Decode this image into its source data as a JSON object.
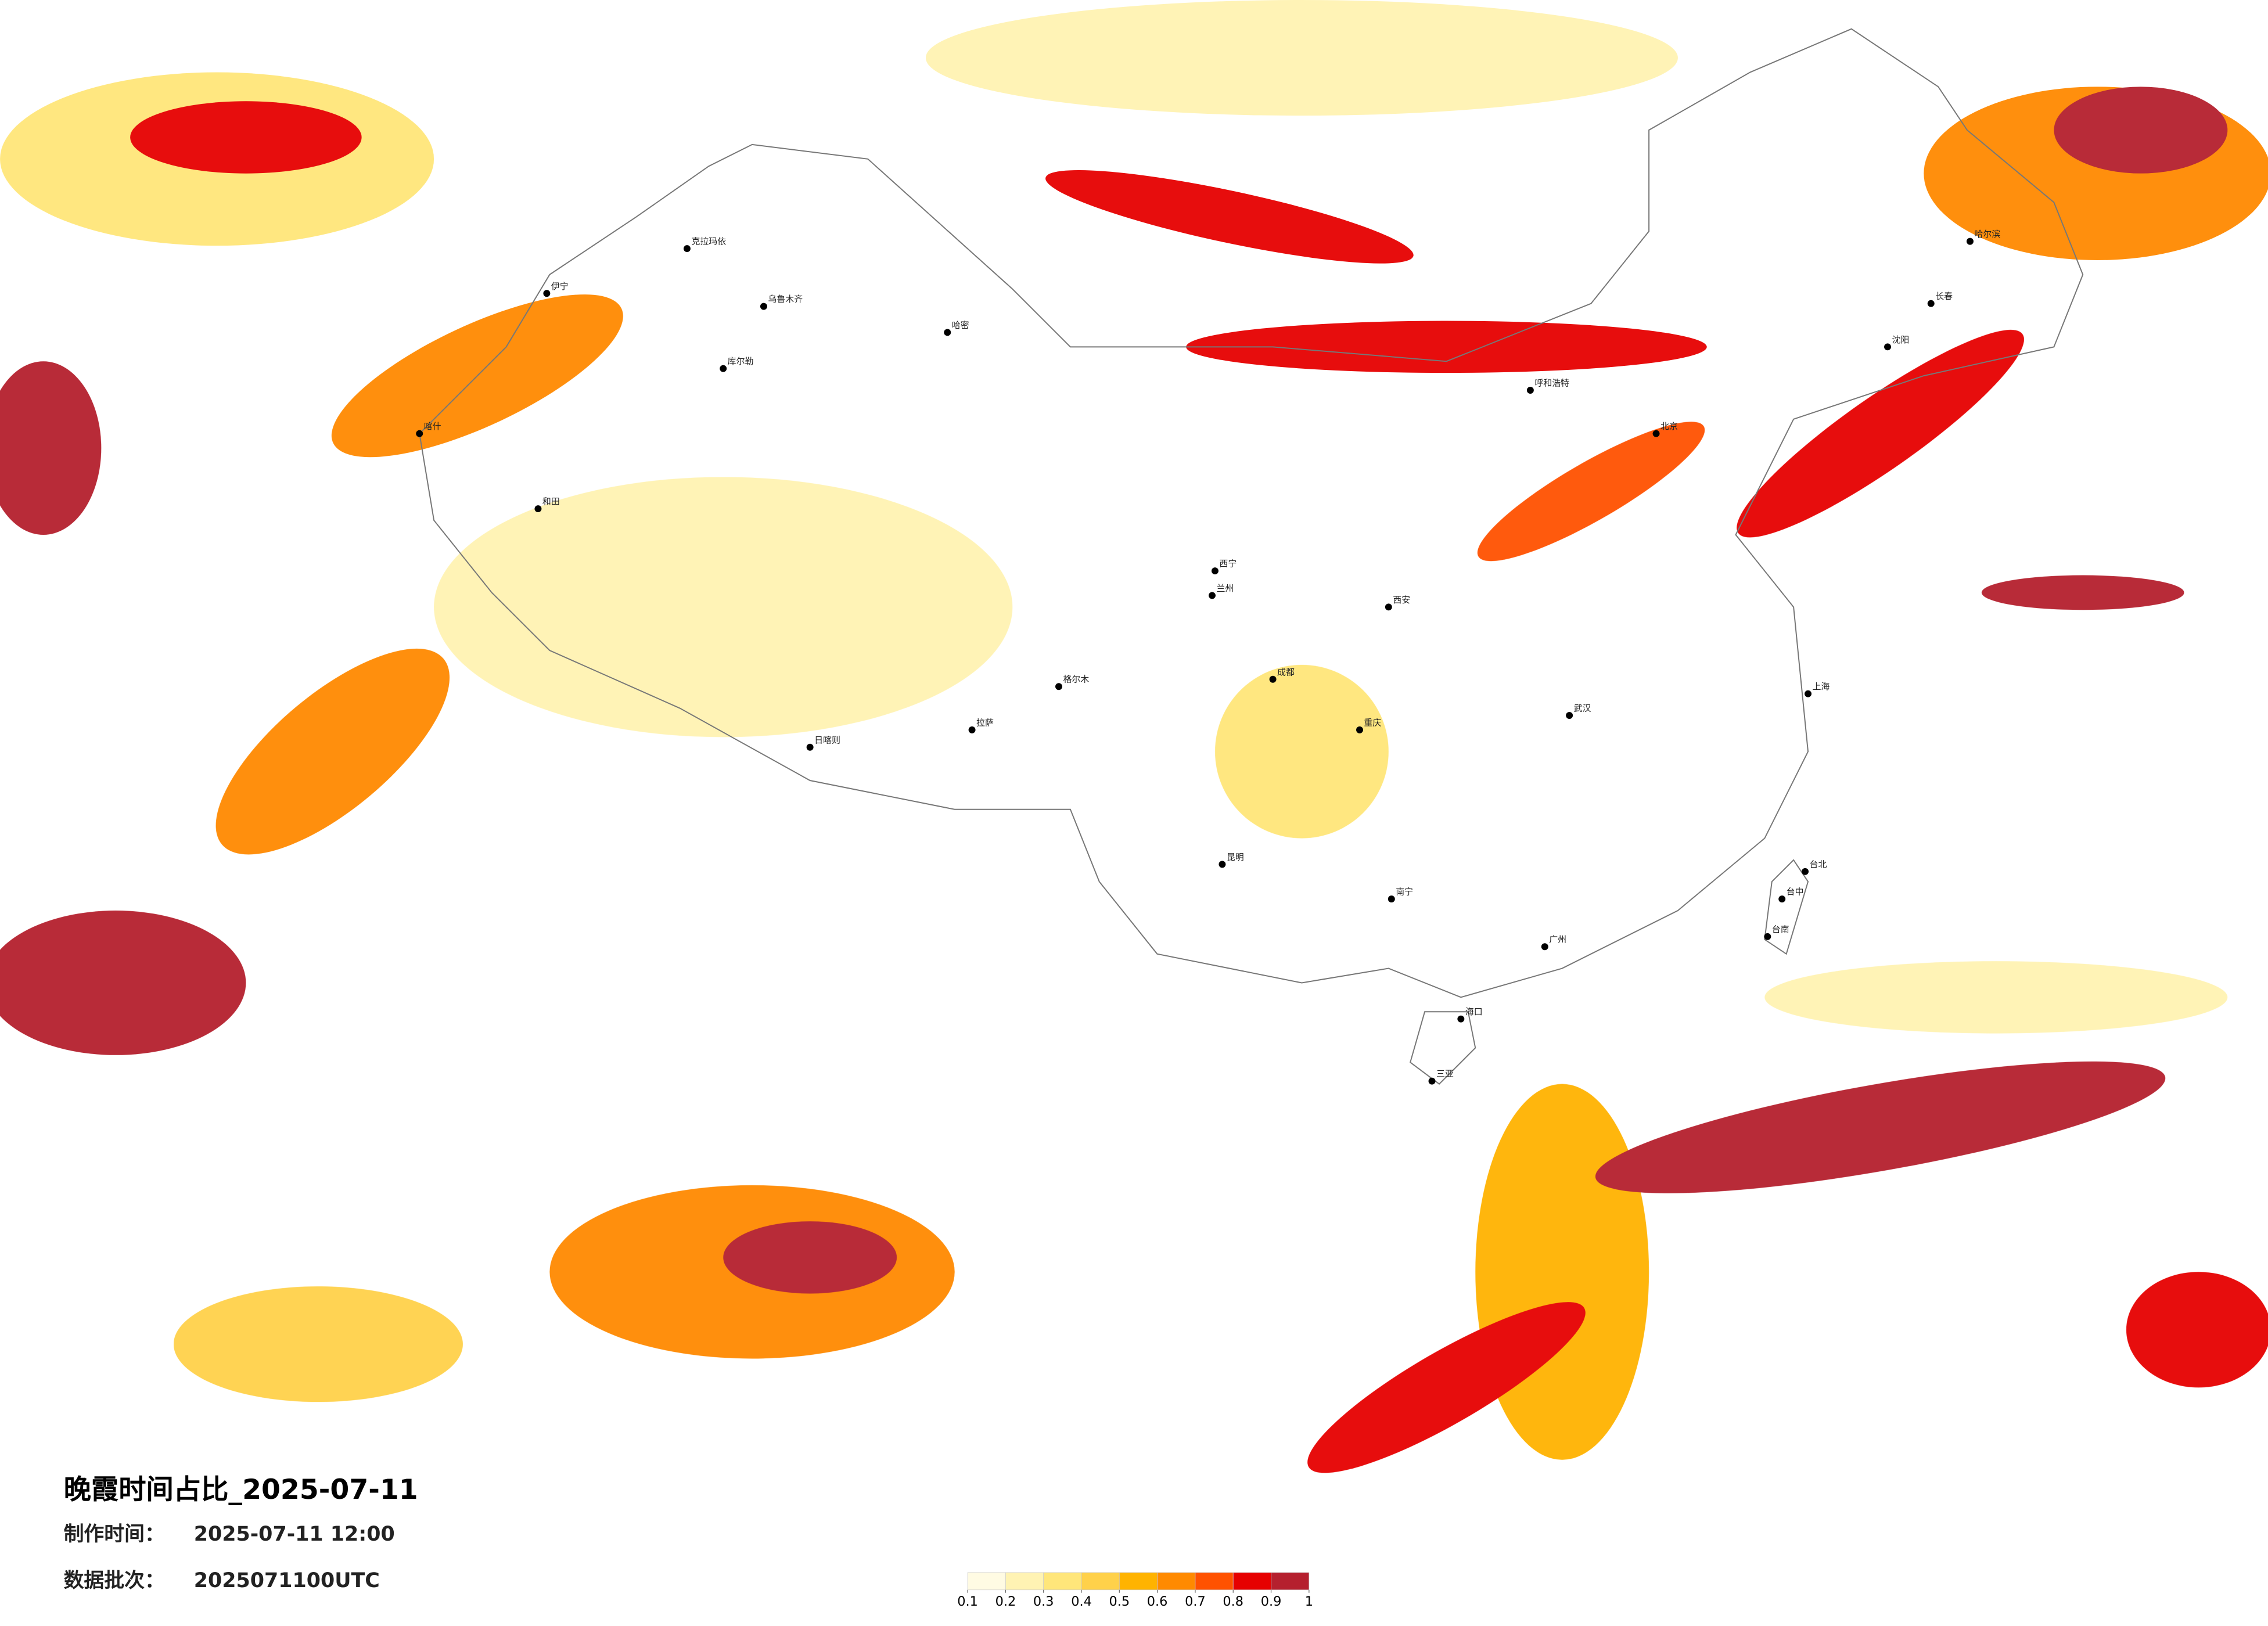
{
  "title": "晚霞时间占比_2025-07-11",
  "info": [
    {
      "label": "制作时间：",
      "value": "2025-07-11 12:00"
    },
    {
      "label": "数据批次：",
      "value": "2025071100UTC"
    }
  ],
  "legend": {
    "ticks": [
      0.1,
      0.2,
      0.3,
      0.4,
      0.5,
      0.6,
      0.7,
      0.8,
      0.9,
      1
    ],
    "colors": [
      "#fffbe3",
      "#fff3b3",
      "#ffe67a",
      "#ffd14a",
      "#ffb300",
      "#ff8a00",
      "#ff5200",
      "#e60000",
      "#b5202e"
    ]
  },
  "cities": [
    "喀什",
    "和田",
    "库尔勒",
    "伊宁",
    "乌鲁木齐",
    "哈密",
    "克拉玛依",
    "格尔木",
    "拉萨",
    "日喀则",
    "西宁",
    "兰州",
    "成都",
    "重庆",
    "昆明",
    "南宁",
    "广州",
    "海口",
    "三亚",
    "台北",
    "台中",
    "台南",
    "北京",
    "上海",
    "武汉",
    "西安",
    "哈尔滨",
    "长春",
    "沈阳",
    "呼和浩特"
  ]
}
